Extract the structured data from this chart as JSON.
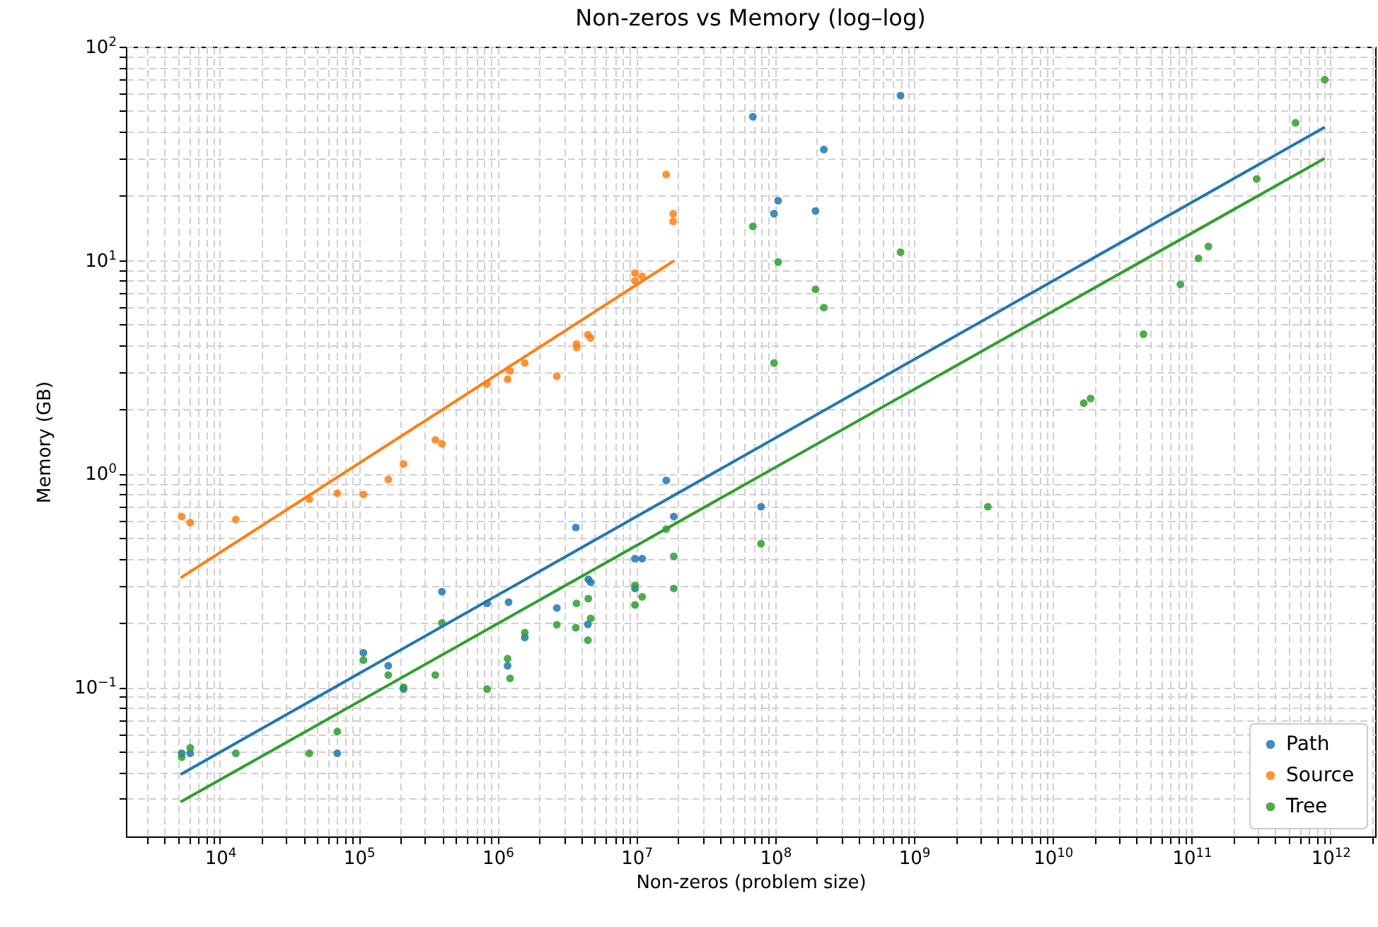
{
  "chart_data": {
    "type": "scatter",
    "title": "Non-zeros vs Memory (log–log)",
    "xlabel": "Non-zeros (problem size)",
    "ylabel": "Memory (GB)",
    "log": "xy",
    "grid": true,
    "legend": "bottom right",
    "marker": "circle",
    "xlim": [
      2100.0,
      2100000000000.0
    ],
    "ylim": [
      0.02,
      100
    ],
    "xticks": [
      {
        "value": 3000.0,
        "label": null
      },
      {
        "value": 4000.0,
        "label": null
      },
      {
        "value": 5000.0,
        "label": null
      },
      {
        "value": 6000.0,
        "label": null
      },
      {
        "value": 7000.0,
        "label": null
      },
      {
        "value": 8000.0,
        "label": null
      },
      {
        "value": 9000.0,
        "label": null
      },
      {
        "value": 10000.0,
        "label": "10$^{4}$"
      },
      {
        "value": 20000.0,
        "label": null
      },
      {
        "value": 30000.0,
        "label": null
      },
      {
        "value": 40000.0,
        "label": null
      },
      {
        "value": 50000.0,
        "label": null
      },
      {
        "value": 60000.0,
        "label": null
      },
      {
        "value": 70000.0,
        "label": null
      },
      {
        "value": 80000.0,
        "label": null
      },
      {
        "value": 90000.0,
        "label": null
      },
      {
        "value": 100000.0,
        "label": "10$^{5}$"
      },
      {
        "value": 200000.0,
        "label": null
      },
      {
        "value": 300000.0,
        "label": null
      },
      {
        "value": 400000.0,
        "label": null
      },
      {
        "value": 500000.0,
        "label": null
      },
      {
        "value": 600000.0,
        "label": null
      },
      {
        "value": 700000.0,
        "label": null
      },
      {
        "value": 800000.0,
        "label": null
      },
      {
        "value": 900000.0,
        "label": null
      },
      {
        "value": 1000000.0,
        "label": "10$^{6}$"
      },
      {
        "value": 2000000.0,
        "label": null
      },
      {
        "value": 3000000.0,
        "label": null
      },
      {
        "value": 4000000.0,
        "label": null
      },
      {
        "value": 5000000.0,
        "label": null
      },
      {
        "value": 6000000.0,
        "label": null
      },
      {
        "value": 7000000.0,
        "label": null
      },
      {
        "value": 8000000.0,
        "label": null
      },
      {
        "value": 9000000.0,
        "label": null
      },
      {
        "value": 10000000.0,
        "label": "10$^{7}$"
      },
      {
        "value": 20000000.0,
        "label": null
      },
      {
        "value": 30000000.0,
        "label": null
      },
      {
        "value": 40000000.0,
        "label": null
      },
      {
        "value": 50000000.0,
        "label": null
      },
      {
        "value": 60000000.0,
        "label": null
      },
      {
        "value": 70000000.0,
        "label": null
      },
      {
        "value": 80000000.0,
        "label": null
      },
      {
        "value": 90000000.0,
        "label": null
      },
      {
        "value": 100000000.0,
        "label": "10$^{8}$"
      },
      {
        "value": 200000000.0,
        "label": null
      },
      {
        "value": 300000000.0,
        "label": null
      },
      {
        "value": 400000000.0,
        "label": null
      },
      {
        "value": 500000000.0,
        "label": null
      },
      {
        "value": 600000000.0,
        "label": null
      },
      {
        "value": 700000000.0,
        "label": null
      },
      {
        "value": 800000000.0,
        "label": null
      },
      {
        "value": 900000000.0,
        "label": null
      },
      {
        "value": 1000000000.0,
        "label": "10$^{9}$"
      },
      {
        "value": 2000000000.0,
        "label": null
      },
      {
        "value": 3000000000.0,
        "label": null
      },
      {
        "value": 4000000000.0,
        "label": null
      },
      {
        "value": 5000000000.0,
        "label": null
      },
      {
        "value": 6000000000.0,
        "label": null
      },
      {
        "value": 7000000000.0,
        "label": null
      },
      {
        "value": 8000000000.0,
        "label": null
      },
      {
        "value": 9000000000.0,
        "label": null
      },
      {
        "value": 10000000000.0,
        "label": "10$^{10}$"
      },
      {
        "value": 20000000000.0,
        "label": null
      },
      {
        "value": 30000000000.0,
        "label": null
      },
      {
        "value": 40000000000.0,
        "label": null
      },
      {
        "value": 50000000000.0,
        "label": null
      },
      {
        "value": 60000000000.0,
        "label": null
      },
      {
        "value": 70000000000.0,
        "label": null
      },
      {
        "value": 80000000000.0,
        "label": null
      },
      {
        "value": 90000000000.0,
        "label": null
      },
      {
        "value": 100000000000.0,
        "label": "10$^{11}$"
      },
      {
        "value": 200000000000.0,
        "label": null
      },
      {
        "value": 300000000000.0,
        "label": null
      },
      {
        "value": 400000000000.0,
        "label": null
      },
      {
        "value": 500000000000.0,
        "label": null
      },
      {
        "value": 600000000000.0,
        "label": null
      },
      {
        "value": 700000000000.0,
        "label": null
      },
      {
        "value": 800000000000.0,
        "label": null
      },
      {
        "value": 900000000000.0,
        "label": null
      },
      {
        "value": 1000000000000.0,
        "label": "10$^{12}$"
      },
      {
        "value": 2000000000000.0,
        "label": null
      }
    ],
    "yticks": [
      {
        "value": 0.03,
        "label": null
      },
      {
        "value": 0.04,
        "label": null
      },
      {
        "value": 0.05,
        "label": null
      },
      {
        "value": 0.06,
        "label": null
      },
      {
        "value": 0.07,
        "label": null
      },
      {
        "value": 0.08,
        "label": null
      },
      {
        "value": 0.09,
        "label": null
      },
      {
        "value": 0.1,
        "label": "10$^{−1}$"
      },
      {
        "value": 0.2,
        "label": null
      },
      {
        "value": 0.3,
        "label": null
      },
      {
        "value": 0.4,
        "label": null
      },
      {
        "value": 0.5,
        "label": null
      },
      {
        "value": 0.6,
        "label": null
      },
      {
        "value": 0.7,
        "label": null
      },
      {
        "value": 0.8,
        "label": null
      },
      {
        "value": 0.9,
        "label": null
      },
      {
        "value": 1,
        "label": "10$^{0}$"
      },
      {
        "value": 2,
        "label": null
      },
      {
        "value": 3,
        "label": null
      },
      {
        "value": 4,
        "label": null
      },
      {
        "value": 5,
        "label": null
      },
      {
        "value": 6,
        "label": null
      },
      {
        "value": 7,
        "label": null
      },
      {
        "value": 8,
        "label": null
      },
      {
        "value": 9,
        "label": null
      },
      {
        "value": 10,
        "label": "10$^{1}$"
      },
      {
        "value": 20,
        "label": null
      },
      {
        "value": 30,
        "label": null
      },
      {
        "value": 40,
        "label": null
      },
      {
        "value": 50,
        "label": null
      },
      {
        "value": 60,
        "label": null
      },
      {
        "value": 70,
        "label": null
      },
      {
        "value": 80,
        "label": null
      },
      {
        "value": 90,
        "label": null
      },
      {
        "value": 100,
        "label": "10$^{2}$"
      }
    ],
    "series": [
      {
        "name": "Path",
        "color": "#1f77b4",
        "x": [
          5300.0,
          6100.0,
          70000.0,
          108000.0,
          163000.0,
          210000.0,
          397000.0,
          840000.0,
          1200000.0,
          1180000.0,
          1570000.0,
          2670000.0,
          3660000.0,
          4500000.0,
          4680000.0,
          4470000.0,
          9770000.0,
          11000000.0,
          9770000.0,
          16400000.0,
          18600000.0,
          79000000.0,
          69000000.0,
          105000000.0,
          98000000.0,
          195000000.0,
          224000000.0,
          800000000.0
        ],
        "values": [
          0.049,
          0.049,
          0.049,
          0.145,
          0.126,
          0.098,
          0.28,
          0.247,
          0.25,
          0.126,
          0.171,
          0.235,
          0.56,
          0.32,
          0.31,
          0.197,
          0.4,
          0.4,
          0.29,
          0.93,
          0.63,
          0.7,
          47,
          19,
          16.5,
          17,
          33,
          59
        ]
      },
      {
        "name": "Source",
        "color": "#ff7f0e",
        "x": [
          5300.0,
          6100.0,
          13000.0,
          44000.0,
          70000.0,
          108000.0,
          163000.0,
          210000.0,
          356000.0,
          397000.0,
          840000.0,
          1180000.0,
          1230000.0,
          1570000.0,
          2670000.0,
          3700000.0,
          3720000.0,
          4470000.0,
          4680000.0,
          9770000.0,
          11000000.0,
          9770000.0,
          16400000.0,
          18400000.0,
          18400000.0
        ],
        "values": [
          0.63,
          0.59,
          0.61,
          0.76,
          0.81,
          0.8,
          0.94,
          1.11,
          1.44,
          1.38,
          2.63,
          2.77,
          3.03,
          3.3,
          2.86,
          4.05,
          3.9,
          4.48,
          4.32,
          8.7,
          8.4,
          8.0,
          25.2,
          16.5,
          15.2
        ]
      },
      {
        "name": "Tree",
        "color": "#2ca02c",
        "x": [
          5300.0,
          6100.0,
          13000.0,
          44000.0,
          70000.0,
          108000.0,
          163000.0,
          210000.0,
          356000.0,
          397000.0,
          840000.0,
          1180000.0,
          1230000.0,
          1570000.0,
          2670000.0,
          3700000.0,
          3660000.0,
          4500000.0,
          4680000.0,
          4470000.0,
          9770000.0,
          9770000.0,
          11000000.0,
          16400000.0,
          18600000.0,
          18600000.0,
          79000000.0,
          69000000.0,
          105000000.0,
          98000000.0,
          195000000.0,
          224000000.0,
          800000000.0,
          3400000000.0,
          16700000000.0,
          18700000000.0,
          45000000000.0,
          83000000000.0,
          112000000000.0,
          132000000000.0,
          294000000000.0,
          560000000000.0,
          910000000000.0
        ],
        "values": [
          0.047,
          0.052,
          0.049,
          0.049,
          0.062,
          0.134,
          0.114,
          0.1,
          0.114,
          0.2,
          0.098,
          0.136,
          0.11,
          0.18,
          0.196,
          0.247,
          0.19,
          0.26,
          0.21,
          0.166,
          0.3,
          0.243,
          0.265,
          0.55,
          0.41,
          0.29,
          0.47,
          14.4,
          9.8,
          3.3,
          7.3,
          6.0,
          10.9,
          0.7,
          2.14,
          2.25,
          4.5,
          7.7,
          10.2,
          11.6,
          24,
          44,
          70
        ]
      },
      {
        "type": "line",
        "color": "#1f77b4",
        "marker": "none",
        "x": [
          5200.0,
          910000000000.0
        ],
        "values": [
          0.039,
          42
        ]
      },
      {
        "type": "line",
        "color": "#ff7f0e",
        "marker": "none",
        "x": [
          5200.0,
          18700000.0
        ],
        "values": [
          0.325,
          9.95
        ]
      },
      {
        "type": "line",
        "color": "#2ca02c",
        "marker": "none",
        "x": [
          5200.0,
          910000000000.0
        ],
        "values": [
          0.029,
          30
        ]
      }
    ]
  }
}
